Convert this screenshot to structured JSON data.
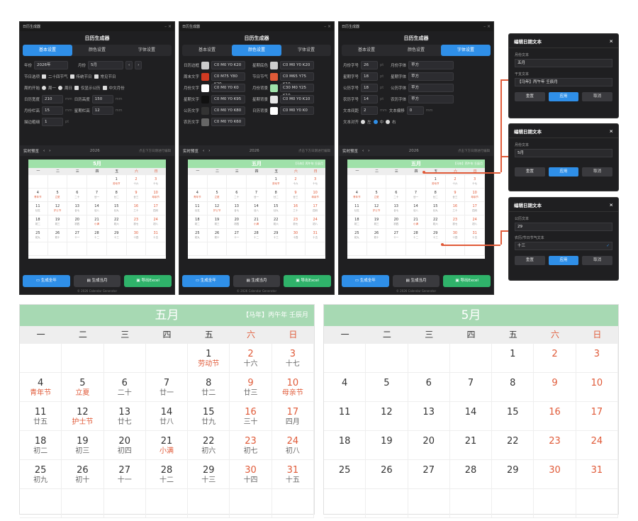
{
  "app": {
    "title": "日历生成器",
    "heading": "日历生成器",
    "tabs": [
      "基本设置",
      "颜色设置",
      "字体设置"
    ],
    "footer": "© 2026 Calendar Generator"
  },
  "buttons": {
    "full_year": "生成全年",
    "current_month": "生成当月",
    "export": "导出Excel"
  },
  "preview": {
    "label": "实时预览",
    "year": "2026",
    "hint": "点击下方日期进行编辑"
  },
  "basic": {
    "year_label": "年份",
    "year_value": "2026年",
    "month_label": "月份",
    "month_value": "5月",
    "nodes_label": "节日选项",
    "opt1": "二十四节气",
    "opt2": "传统节日",
    "opt3": "常见节日",
    "week_label": "周的开始",
    "week_opt1": "周一",
    "week_opt2": "周日",
    "opt4": "仅显示公历",
    "opt5": "中文月份",
    "width_label": "日历宽度",
    "width_value": "210",
    "height_label": "日历高度",
    "height_value": "150",
    "month_h_label": "月份栏高",
    "month_h_value": "15",
    "week_h_label": "星期栏高",
    "week_h_value": "12",
    "gap_label": "描边粗细",
    "gap_value": "1",
    "mm": "mm",
    "pt": "pt"
  },
  "colors": [
    {
      "label": "日历边框",
      "value": "C0 M0 Y0 K20",
      "swatch": "#cccccc",
      "label2": "星期底色",
      "value2": "C0 M0 Y0 K20",
      "swatch2": "#cccccc"
    },
    {
      "label": "周末文字",
      "value": "C0 M75 Y80 K20",
      "swatch": "#d03a22",
      "label2": "节日节气",
      "value2": "C0 M65 Y75 K10",
      "swatch2": "#e05a38"
    },
    {
      "label": "月份文字",
      "value": "C0 M0 Y0 K0",
      "swatch": "#ffffff",
      "label2": "月份背景",
      "value2": "C30 M0 Y25 K10",
      "swatch2": "#9fe1a9"
    },
    {
      "label": "星期文字",
      "value": "C0 M0 Y0 K95",
      "swatch": "#111111",
      "label2": "星期背景",
      "value2": "C0 M0 Y0 K10",
      "swatch2": "#e6e6e6"
    },
    {
      "label": "公历文字",
      "value": "C0 M0 Y0 K80",
      "swatch": "#333333",
      "label2": "日历背景",
      "value2": "C0 M0 Y0 K0",
      "swatch2": "#ffffff"
    },
    {
      "label": "农历文字",
      "value": "C0 M0 Y0 K60",
      "swatch": "#666666",
      "label2": "",
      "value2": "",
      "swatch2": ""
    }
  ],
  "fonts": {
    "rows": [
      {
        "l1": "月份字号",
        "v1": "26",
        "u1": "pt",
        "l2": "月份字体",
        "v2": "苹方"
      },
      {
        "l1": "星期字号",
        "v1": "18",
        "u1": "pt",
        "l2": "星期字体",
        "v2": "苹方"
      },
      {
        "l1": "公历字号",
        "v1": "18",
        "u1": "pt",
        "l2": "公历字体",
        "v2": "苹方"
      },
      {
        "l1": "农历字号",
        "v1": "14",
        "u1": "pt",
        "l2": "农历字体",
        "v2": "苹方"
      }
    ],
    "spacing_label": "文本间距",
    "spacing_value": "2",
    "offset_label": "文本偏移",
    "offset_value": "0",
    "align_label": "文本对齐",
    "align_opts": [
      "左",
      "中",
      "右"
    ]
  },
  "dialogs": [
    {
      "title": "编辑日期文本",
      "l1": "月份文本",
      "v1": "五月",
      "l2": "干支文本",
      "v2": "【马年】丙午年 壬辰月"
    },
    {
      "title": "编辑日期文本",
      "l1": "月份文本",
      "v1": "5月"
    },
    {
      "title": "编辑日期文本",
      "l1": "公历文本",
      "v1": "29",
      "l2": "农历/节日节气文本",
      "v2": "十三"
    }
  ],
  "dialog_buttons": {
    "reset": "重置",
    "apply": "应用",
    "cancel": "取消"
  },
  "calendar": {
    "month_cn": "五月",
    "month_num": "5月",
    "ganzhi": "【马年】丙午年 壬辰月",
    "weekdays": [
      "一",
      "二",
      "三",
      "四",
      "五",
      "六",
      "日"
    ],
    "lead_blanks": 4,
    "days": [
      {
        "d": "1",
        "l": "劳动节",
        "h": true
      },
      {
        "d": "2",
        "l": "十六"
      },
      {
        "d": "3",
        "l": "十七"
      },
      {
        "d": "4",
        "l": "青年节",
        "h": true
      },
      {
        "d": "5",
        "l": "立夏",
        "h": true
      },
      {
        "d": "6",
        "l": "二十"
      },
      {
        "d": "7",
        "l": "廿一"
      },
      {
        "d": "8",
        "l": "廿二"
      },
      {
        "d": "9",
        "l": "廿三"
      },
      {
        "d": "10",
        "l": "母亲节",
        "h": true
      },
      {
        "d": "11",
        "l": "廿五"
      },
      {
        "d": "12",
        "l": "护士节",
        "h": true
      },
      {
        "d": "13",
        "l": "廿七"
      },
      {
        "d": "14",
        "l": "廿八"
      },
      {
        "d": "15",
        "l": "廿九"
      },
      {
        "d": "16",
        "l": "三十"
      },
      {
        "d": "17",
        "l": "四月"
      },
      {
        "d": "18",
        "l": "初二"
      },
      {
        "d": "19",
        "l": "初三"
      },
      {
        "d": "20",
        "l": "初四"
      },
      {
        "d": "21",
        "l": "小满",
        "h": true
      },
      {
        "d": "22",
        "l": "初六"
      },
      {
        "d": "23",
        "l": "初七"
      },
      {
        "d": "24",
        "l": "初八"
      },
      {
        "d": "25",
        "l": "初九"
      },
      {
        "d": "26",
        "l": "初十"
      },
      {
        "d": "27",
        "l": "十一"
      },
      {
        "d": "28",
        "l": "十二"
      },
      {
        "d": "29",
        "l": "十三"
      },
      {
        "d": "30",
        "l": "十四"
      },
      {
        "d": "31",
        "l": "十五"
      }
    ]
  }
}
